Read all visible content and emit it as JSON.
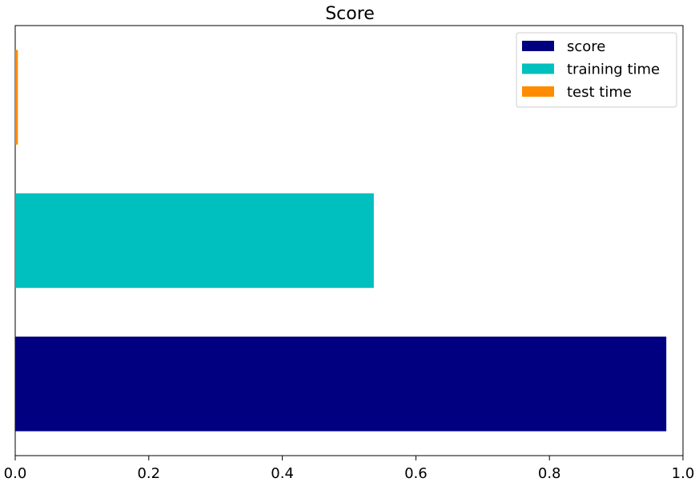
{
  "chart_data": {
    "type": "bar",
    "orientation": "horizontal",
    "title": "Score",
    "xlabel": "",
    "ylabel": "",
    "xlim": [
      0,
      1.0
    ],
    "xticks": [
      "0.0",
      "0.2",
      "0.4",
      "0.6",
      "0.8",
      "1.0"
    ],
    "grid": false,
    "legend_position": "top-right",
    "series": [
      {
        "name": "score",
        "value": 0.975,
        "color": "#000080"
      },
      {
        "name": "training time",
        "value": 0.537,
        "color": "#00bfbf"
      },
      {
        "name": "test time",
        "value": 0.004,
        "color": "#ff8c00"
      }
    ]
  }
}
